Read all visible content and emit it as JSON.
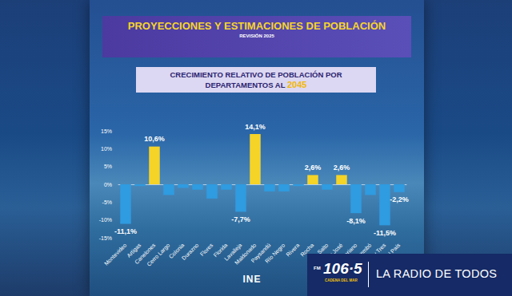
{
  "header": {
    "title": "PROYECCIONES Y ESTIMACIONES DE POBLACIÓN",
    "revision": "REVISIÓN 2025"
  },
  "chart_data": {
    "type": "bar",
    "title": "CRECIMIENTO RELATIVO DE POBLACIÓN POR DEPARTAMENTOS AL 2045",
    "categories": [
      "Montevideo",
      "Artigas",
      "Canelones",
      "Cerro Largo",
      "Colonia",
      "Durazno",
      "Flores",
      "Florida",
      "Lavalleja",
      "Maldonado",
      "Paysandú",
      "Río Negro",
      "Rivera",
      "Rocha",
      "Salto",
      "San José",
      "Soriano",
      "Tacuarembó",
      "Treinta y Tres",
      "Total País"
    ],
    "values": [
      -11.1,
      -0.5,
      10.6,
      -3.0,
      -1.0,
      -1.5,
      -4.0,
      -1.5,
      -7.7,
      14.1,
      -2.0,
      -2.0,
      -0.5,
      2.6,
      -1.5,
      2.6,
      -8.1,
      -3.0,
      -11.5,
      -2.2
    ],
    "value_labels": [
      "-11,1%",
      null,
      "10,6%",
      null,
      null,
      null,
      null,
      null,
      "-7,7%",
      "14,1%",
      null,
      null,
      null,
      "2,6%",
      null,
      "2,6%",
      "-8,1%",
      null,
      "-11,5%",
      "-2,2%"
    ],
    "colors": [
      "#2f9be0",
      "#2f9be0",
      "#f5d327",
      "#2f9be0",
      "#2f9be0",
      "#2f9be0",
      "#2f9be0",
      "#2f9be0",
      "#2f9be0",
      "#f5d327",
      "#2f9be0",
      "#2f9be0",
      "#2f9be0",
      "#f5d327",
      "#2f9be0",
      "#f5d327",
      "#2f9be0",
      "#2f9be0",
      "#2f9be0",
      "#2f9be0"
    ],
    "ylim": [
      -15,
      15
    ],
    "yticks": [
      {
        "value": -15,
        "label": "-15%"
      },
      {
        "value": -10,
        "label": "-10%"
      },
      {
        "value": -5,
        "label": "-5%"
      },
      {
        "value": 0,
        "label": "0%"
      },
      {
        "value": 5,
        "label": "5%"
      },
      {
        "value": 10,
        "label": "10%"
      },
      {
        "value": 15,
        "label": "15%"
      }
    ],
    "grid": false,
    "data_labels": true
  },
  "footer": {
    "logo": "INE",
    "radio": {
      "band": "FM",
      "frequency": "106·5",
      "station": "CADENA DEL MAR",
      "slogan": "LA RADIO DE TODOS"
    }
  }
}
